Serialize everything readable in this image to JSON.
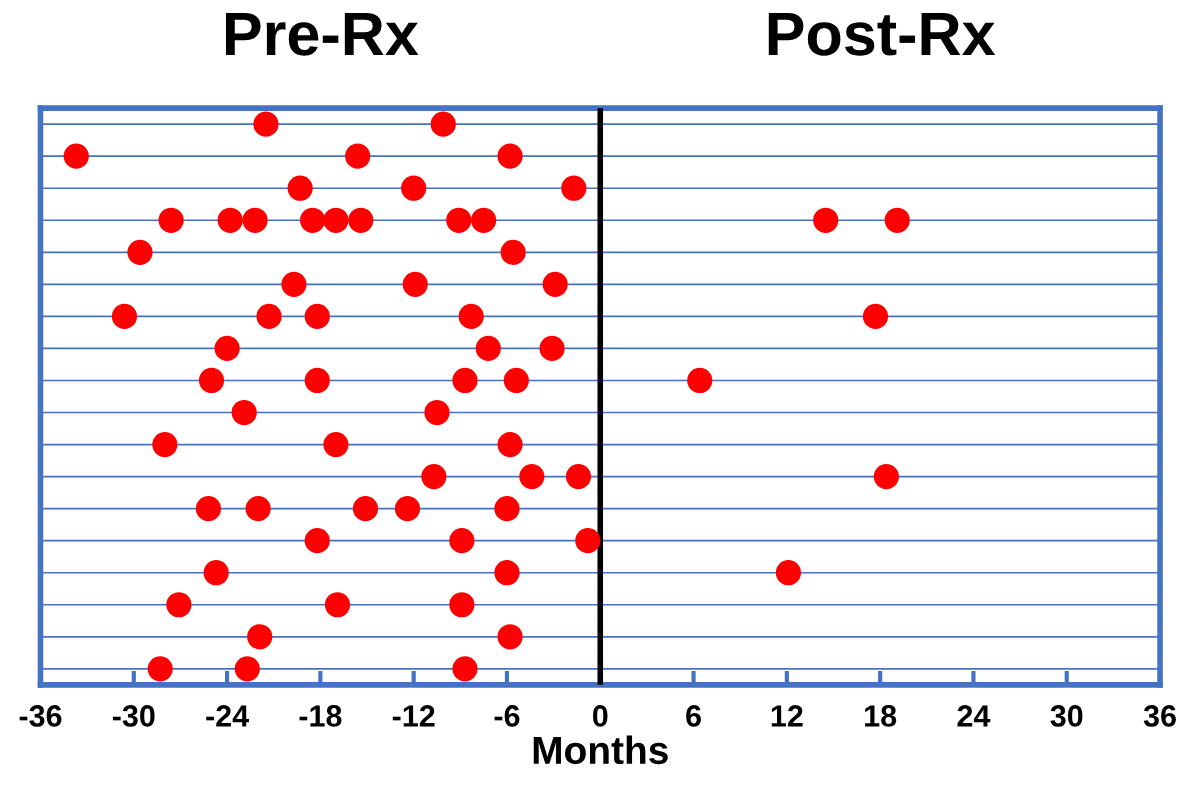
{
  "chart_data": {
    "type": "scatter",
    "orientation": "horizontal",
    "xlabel": "Months",
    "annotations": [
      "Pre-Rx",
      "Post-Rx"
    ],
    "categories": [
      null,
      null,
      null,
      null,
      null,
      null,
      null,
      null,
      null,
      null,
      null,
      null,
      null,
      null,
      null,
      null,
      null,
      null
    ],
    "xlim": [
      -36,
      36
    ],
    "xticks": [
      -36,
      -30,
      -24,
      -18,
      -12,
      -6,
      0,
      6,
      12,
      18,
      24,
      30,
      36
    ],
    "grid": "y",
    "tick_labels": "x",
    "marker": "circle",
    "ref_lines": [
      {
        "axis": "x",
        "value": 0,
        "color": "#000000"
      }
    ],
    "series": [
      {
        "color": "#ff0000",
        "values": [
          -21.5,
          -33.7,
          -19.3,
          -27.6,
          -29.6,
          -19.7,
          -30.6,
          -24.0,
          -25.0,
          -22.9,
          -28.0,
          -10.7,
          -25.2,
          -18.2,
          -24.7,
          -27.1,
          -21.9,
          -28.3
        ]
      },
      {
        "color": "#ff0000",
        "values": [
          -10.1,
          -15.6,
          -12.0,
          -23.8,
          -5.6,
          -11.9,
          -21.3,
          -7.2,
          -18.2,
          -10.5,
          -17.0,
          -4.4,
          -22.0,
          -8.9,
          -6.0,
          -16.9,
          -5.8,
          -22.7
        ]
      },
      {
        "color": "#ff0000",
        "values": [
          null,
          -5.8,
          -1.7,
          -22.2,
          null,
          -2.9,
          -18.2,
          -3.1,
          -8.7,
          null,
          -5.8,
          -1.4,
          -15.1,
          -0.8,
          12.1,
          -8.9,
          null,
          -8.7
        ]
      },
      {
        "color": "#ff0000",
        "values": [
          null,
          null,
          null,
          -18.5,
          null,
          null,
          -8.3,
          null,
          -5.4,
          null,
          null,
          18.4,
          -12.4,
          null,
          null,
          null,
          null,
          null
        ]
      },
      {
        "color": "#ff0000",
        "values": [
          null,
          null,
          null,
          -17.0,
          null,
          null,
          17.7,
          null,
          6.4,
          null,
          null,
          null,
          -6.0,
          null,
          null,
          null,
          null,
          null
        ]
      },
      {
        "color": "#ff0000",
        "values": [
          null,
          null,
          null,
          -15.4,
          null,
          null,
          null,
          null,
          null,
          null,
          null,
          null,
          null,
          null,
          null,
          null,
          null,
          null
        ]
      },
      {
        "color": "#ff0000",
        "values": [
          null,
          null,
          null,
          -9.1,
          null,
          null,
          null,
          null,
          null,
          null,
          null,
          null,
          null,
          null,
          null,
          null,
          null,
          null
        ]
      },
      {
        "color": "#ff0000",
        "values": [
          null,
          null,
          null,
          -7.5,
          null,
          null,
          null,
          null,
          null,
          null,
          null,
          null,
          null,
          null,
          null,
          null,
          null,
          null
        ]
      },
      {
        "color": "#ff0000",
        "values": [
          null,
          null,
          null,
          14.5,
          null,
          null,
          null,
          null,
          null,
          null,
          null,
          null,
          null,
          null,
          null,
          null,
          null,
          null
        ]
      },
      {
        "color": "#ff0000",
        "values": [
          null,
          null,
          null,
          19.1,
          null,
          null,
          null,
          null,
          null,
          null,
          null,
          null,
          null,
          null,
          null,
          null,
          null,
          null
        ]
      }
    ]
  }
}
